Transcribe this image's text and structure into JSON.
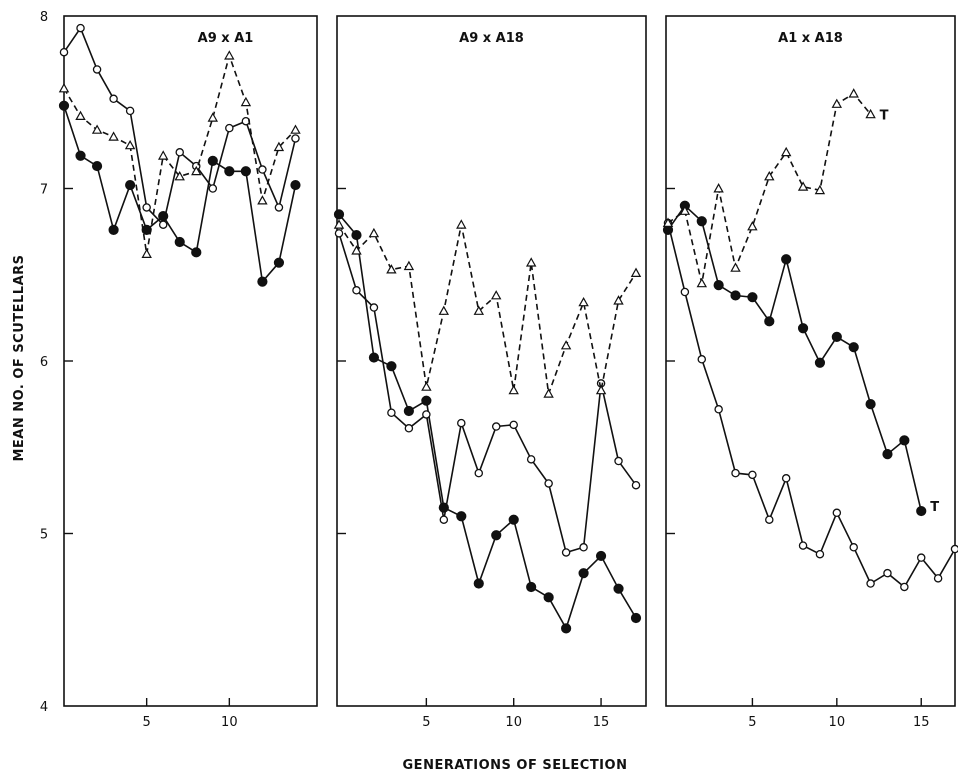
{
  "chart_data": {
    "type": "line",
    "xlabel": "GENERATIONS OF SELECTION",
    "ylabel": "MEAN NO. OF SCUTELLARS",
    "ylim": [
      4,
      8
    ],
    "yticks": [
      4,
      5,
      6,
      7,
      8
    ],
    "grid": false,
    "panels": [
      {
        "title": "A9 x A1",
        "xlim": [
          0,
          15
        ],
        "xticks": [
          5,
          10
        ],
        "series": [
          {
            "marker": "filled-circle",
            "line": "solid",
            "x": [
              0,
              1,
              2,
              3,
              4,
              5,
              6,
              7,
              8,
              9,
              10,
              11,
              12,
              13,
              14
            ],
            "y": [
              7.48,
              7.19,
              7.13,
              6.76,
              7.02,
              6.76,
              6.84,
              6.69,
              6.63,
              7.16,
              7.1,
              7.1,
              6.46,
              6.57,
              7.02
            ]
          },
          {
            "marker": "open-circle",
            "line": "solid",
            "x": [
              0,
              1,
              2,
              3,
              4,
              5,
              6,
              7,
              8,
              9,
              10,
              11,
              12,
              13,
              14
            ],
            "y": [
              7.79,
              7.93,
              7.69,
              7.52,
              7.45,
              6.89,
              6.79,
              7.21,
              7.13,
              7.0,
              7.35,
              7.39,
              7.11,
              6.89,
              7.29
            ]
          },
          {
            "marker": "open-triangle",
            "line": "dashed",
            "x": [
              0,
              1,
              2,
              3,
              4,
              5,
              6,
              7,
              8,
              9,
              10,
              11,
              12,
              13,
              14
            ],
            "y": [
              7.58,
              7.42,
              7.34,
              7.3,
              7.25,
              6.62,
              7.19,
              7.07,
              7.1,
              7.41,
              7.77,
              7.5,
              6.93,
              7.24,
              7.34
            ]
          }
        ]
      },
      {
        "title": "A9 x A18",
        "xlim": [
          0,
          17
        ],
        "xticks": [
          5,
          10,
          15
        ],
        "series": [
          {
            "marker": "filled-circle",
            "line": "solid",
            "x": [
              0,
              1,
              2,
              3,
              4,
              5,
              6,
              7,
              8,
              9,
              10,
              11,
              12,
              13,
              14,
              15,
              16,
              17
            ],
            "y": [
              6.85,
              6.73,
              6.02,
              5.97,
              5.71,
              5.77,
              5.15,
              5.1,
              4.71,
              4.99,
              5.08,
              4.69,
              4.63,
              4.45,
              4.77,
              4.87,
              4.68,
              4.51
            ]
          },
          {
            "marker": "open-circle",
            "line": "solid",
            "x": [
              0,
              1,
              2,
              3,
              4,
              5,
              6,
              7,
              8,
              9,
              10,
              11,
              12,
              13,
              14,
              15,
              16,
              17
            ],
            "y": [
              6.74,
              6.41,
              6.31,
              5.7,
              5.61,
              5.69,
              5.08,
              5.64,
              5.35,
              5.62,
              5.63,
              5.43,
              5.29,
              4.89,
              4.92,
              5.87,
              5.42,
              5.28
            ]
          },
          {
            "marker": "open-triangle",
            "line": "dashed",
            "x": [
              0,
              1,
              2,
              3,
              4,
              5,
              6,
              7,
              8,
              9,
              10,
              11,
              12,
              13,
              14,
              15,
              16,
              17
            ],
            "y": [
              6.79,
              6.64,
              6.74,
              6.53,
              6.55,
              5.85,
              6.29,
              6.79,
              6.29,
              6.38,
              5.83,
              6.57,
              5.81,
              6.09,
              6.34,
              5.83,
              6.35,
              6.51
            ]
          }
        ]
      },
      {
        "title": "A1 x A18",
        "xlim": [
          0,
          17
        ],
        "xticks": [
          5,
          10,
          15
        ],
        "annotations": [
          {
            "text": "T",
            "x": 12.8,
            "y": 7.43
          },
          {
            "text": "T",
            "x": 15.8,
            "y": 5.16
          }
        ],
        "series": [
          {
            "marker": "filled-circle",
            "line": "solid",
            "x": [
              0,
              1,
              2,
              3,
              4,
              5,
              6,
              7,
              8,
              9,
              10,
              11,
              12,
              13,
              14,
              15
            ],
            "y": [
              6.76,
              6.9,
              6.81,
              6.44,
              6.38,
              6.37,
              6.23,
              6.59,
              6.19,
              5.99,
              6.14,
              6.08,
              5.75,
              5.46,
              5.54,
              5.13
            ]
          },
          {
            "marker": "open-circle",
            "line": "solid",
            "x": [
              0,
              1,
              2,
              3,
              4,
              5,
              6,
              7,
              8,
              9,
              10,
              11,
              12,
              13,
              14,
              15,
              16,
              17
            ],
            "y": [
              6.8,
              6.4,
              6.01,
              5.72,
              5.35,
              5.34,
              5.08,
              5.32,
              4.93,
              4.88,
              5.12,
              4.92,
              4.71,
              4.77,
              4.69,
              4.86,
              4.74,
              4.91
            ]
          },
          {
            "marker": "open-triangle",
            "line": "dashed",
            "x": [
              0,
              1,
              2,
              3,
              4,
              5,
              6,
              7,
              8,
              9,
              10,
              11,
              12
            ],
            "y": [
              6.8,
              6.87,
              6.45,
              7.0,
              6.54,
              6.78,
              7.07,
              7.21,
              7.01,
              6.99,
              7.49,
              7.55,
              7.43
            ]
          }
        ]
      }
    ]
  }
}
